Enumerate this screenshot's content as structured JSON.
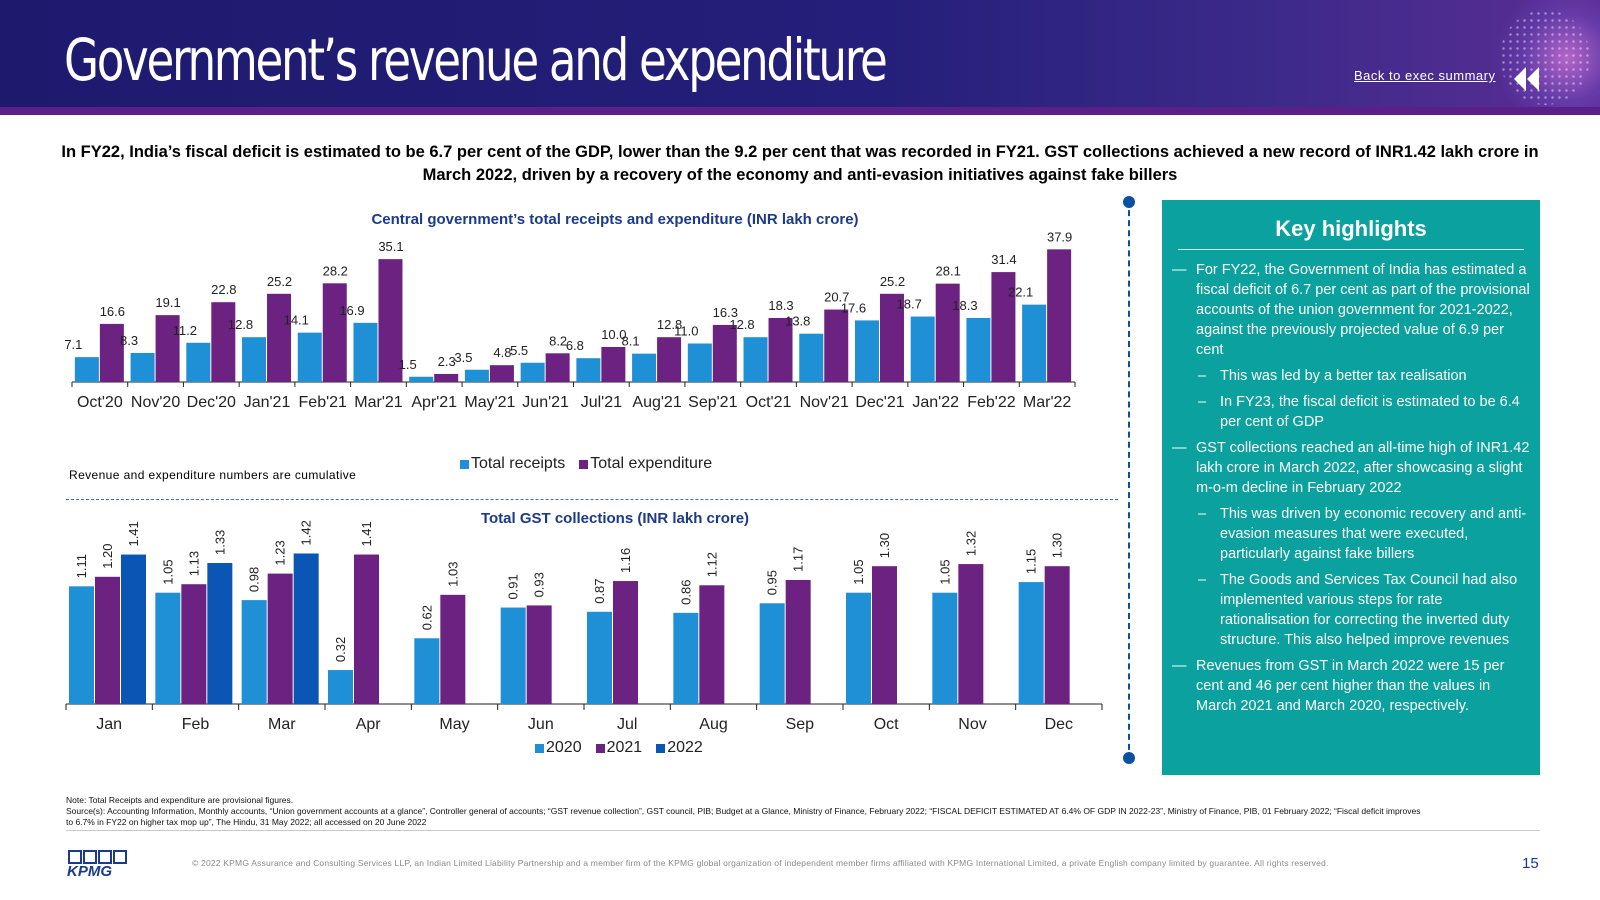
{
  "header": {
    "title": "Government’s revenue and expenditure",
    "back_link": "Back to exec summary"
  },
  "intro": "In FY22, India’s fiscal deficit is estimated to be 6.7 per cent of the GDP, lower than the 9.2 per cent that was recorded in FY21. GST collections achieved a new record of INR1.42 lakh crore in March 2022, driven by a recovery of the economy and anti-evasion initiatives against fake billers",
  "colors": {
    "receipts": "#1f8fd6",
    "expenditure": "#6b2281",
    "gst_2020": "#1f8fd6",
    "gst_2021": "#6b2281",
    "gst_2022": "#0b56b4",
    "panel": "#0aa19e",
    "header": "#1d1a6e"
  },
  "cumulative_note": "Revenue and expenditure numbers are cumulative",
  "chart_data": [
    {
      "type": "bar",
      "title": "Central government’s total receipts and expenditure (INR lakh crore)",
      "categories": [
        "Oct'20",
        "Nov'20",
        "Dec'20",
        "Jan'21",
        "Feb'21",
        "Mar'21",
        "Apr'21",
        "May'21",
        "Jun'21",
        "Jul'21",
        "Aug'21",
        "Sep'21",
        "Oct'21",
        "Nov'21",
        "Dec'21",
        "Jan'22",
        "Feb'22",
        "Mar'22"
      ],
      "series": [
        {
          "name": "Total receipts",
          "values": [
            7.1,
            8.3,
            11.2,
            12.8,
            14.1,
            16.9,
            1.5,
            3.5,
            5.5,
            6.8,
            8.1,
            11.0,
            12.8,
            13.8,
            17.6,
            18.7,
            18.3,
            22.1
          ]
        },
        {
          "name": "Total expenditure",
          "values": [
            16.6,
            19.1,
            22.8,
            25.2,
            28.2,
            35.1,
            2.3,
            4.8,
            8.2,
            10.0,
            12.8,
            16.3,
            18.3,
            20.7,
            25.2,
            28.1,
            31.4,
            37.9
          ]
        }
      ],
      "legend_position": "bottom",
      "ylim": [
        0,
        40
      ]
    },
    {
      "type": "bar",
      "title": "Total GST collections (INR lakh crore)",
      "categories": [
        "Jan",
        "Feb",
        "Mar",
        "Apr",
        "May",
        "Jun",
        "Jul",
        "Aug",
        "Sep",
        "Oct",
        "Nov",
        "Dec"
      ],
      "series": [
        {
          "name": "2020",
          "values": [
            1.11,
            1.05,
            0.98,
            0.32,
            0.62,
            0.91,
            0.87,
            0.86,
            0.95,
            1.05,
            1.05,
            1.15
          ]
        },
        {
          "name": "2021",
          "values": [
            1.2,
            1.13,
            1.23,
            1.41,
            1.03,
            0.93,
            1.16,
            1.12,
            1.17,
            1.3,
            1.32,
            1.3
          ]
        },
        {
          "name": "2022",
          "values": [
            1.41,
            1.33,
            1.42,
            null,
            null,
            null,
            null,
            null,
            null,
            null,
            null,
            null
          ]
        }
      ],
      "legend_position": "bottom",
      "ylim": [
        0,
        1.6
      ]
    }
  ],
  "panel": {
    "title": "Key highlights",
    "items": [
      {
        "level": 1,
        "text": "For FY22, the Government of India has estimated a fiscal deficit of 6.7 per cent as part of the provisional accounts of the union government for 2021-2022, against the previously projected value of 6.9 per cent"
      },
      {
        "level": 2,
        "text": "This was led by a better tax realisation"
      },
      {
        "level": 2,
        "text": "In FY23, the fiscal deficit is estimated to be 6.4 per cent of GDP"
      },
      {
        "level": 1,
        "text": "GST collections reached an all-time high of INR1.42 lakh crore in March 2022, after showcasing a slight m-o-m decline in February 2022"
      },
      {
        "level": 2,
        "text": "This was driven by economic recovery and anti-evasion measures that were executed, particularly against fake billers"
      },
      {
        "level": 2,
        "text": "The Goods and Services Tax Council had also implemented various steps for rate rationalisation for correcting the inverted duty structure. This also helped improve revenues"
      },
      {
        "level": 1,
        "text": "Revenues from GST in March 2022 were 15 per cent and 46 per cent higher than the values in March 2021 and March 2020, respectively."
      }
    ]
  },
  "footer": {
    "note": "Note: Total Receipts and expenditure are provisional figures.",
    "sources": "Source(s): Accounting Information, Monthly accounts, “Union government accounts at a glance”, Controller general of accounts; “GST revenue collection”, GST council, PIB; Budget at a Glance, Ministry of Finance, February 2022; “FISCAL DEFICIT ESTIMATED AT 6.4% OF GDP IN 2022-23”, Ministry of Finance, PIB, 01 February 2022; “Fiscal deficit improves to 6.7% in FY22 on higher tax mop up”, The Hindu, 31 May 2022; all accessed on 20 June 2022",
    "logo": "KPMG",
    "copyright": "© 2022 KPMG Assurance and Consulting Services LLP, an Indian Limited Liability Partnership and a member firm of the KPMG global organization of independent member firms affiliated with KPMG International Limited, a private English company limited by guarantee. All rights reserved.",
    "page": "15"
  }
}
